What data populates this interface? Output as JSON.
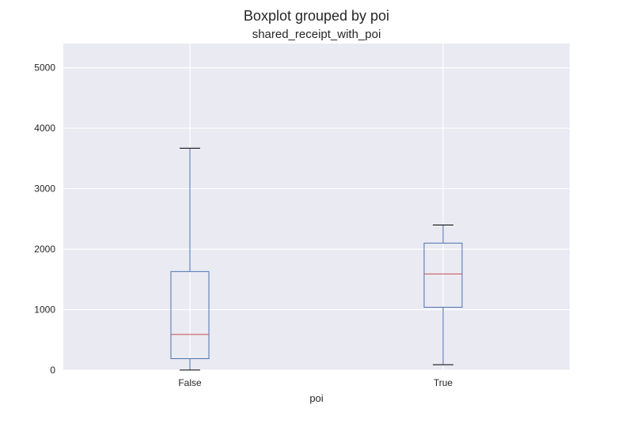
{
  "chart_data": {
    "type": "box",
    "title": "Boxplot grouped by poi",
    "subtitle": "shared_receipt_with_poi",
    "xlabel": "poi",
    "ylabel": "",
    "ylim": [
      0,
      5400
    ],
    "yticks": [
      0,
      1000,
      2000,
      3000,
      4000,
      5000
    ],
    "ytick_labels": [
      "0",
      "1000",
      "2000",
      "3000",
      "4000",
      "5000"
    ],
    "categories": [
      "False",
      "True"
    ],
    "boxes": [
      {
        "category": "False",
        "whisker_low": 2,
        "q1": 190,
        "median": 590,
        "q3": 1630,
        "whisker_high": 3670
      },
      {
        "category": "True",
        "whisker_low": 90,
        "q1": 1040,
        "median": 1590,
        "q3": 2100,
        "whisker_high": 2400
      }
    ],
    "grid": true,
    "colors": {
      "plot_background": "#EAEAF2",
      "grid": "#FFFFFF",
      "box": "#4C72B0",
      "median": "#C44E52",
      "caps": "#000000",
      "text": "#262626"
    }
  }
}
